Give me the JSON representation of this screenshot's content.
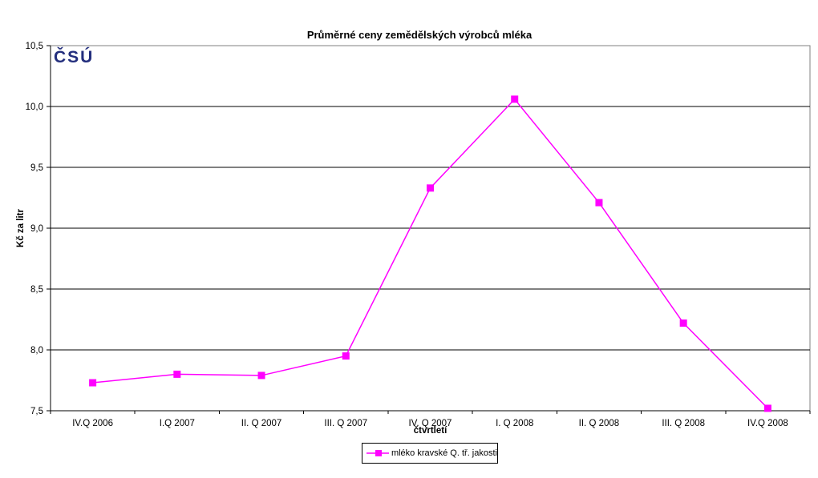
{
  "logo": {
    "text": "ČSÚ",
    "color": "#232E7D"
  },
  "chart_data": {
    "type": "line",
    "title": "Průměrné ceny zemědělských výrobců mléka",
    "xlabel": "čtvrtletí",
    "ylabel": "Kč za litr",
    "categories": [
      "IV.Q 2006",
      "I.Q 2007",
      "II. Q 2007",
      "III. Q 2007",
      "IV. Q 2007",
      "I. Q 2008",
      "II. Q 2008",
      "III. Q 2008",
      "IV.Q 2008"
    ],
    "series": [
      {
        "name": "mléko kravské Q. tř. jakosti",
        "values": [
          7.73,
          7.8,
          7.79,
          7.95,
          9.33,
          10.06,
          9.21,
          8.22,
          7.52
        ],
        "color": "#FF00FF",
        "marker": "square"
      }
    ],
    "ylim": [
      7.5,
      10.5
    ],
    "ytick_step": 0.5,
    "ytick_labels": [
      "7,5",
      "8,0",
      "8,5",
      "9,0",
      "9,5",
      "10,0",
      "10,5"
    ],
    "grid": "horizontal",
    "legend_position": "bottom"
  }
}
